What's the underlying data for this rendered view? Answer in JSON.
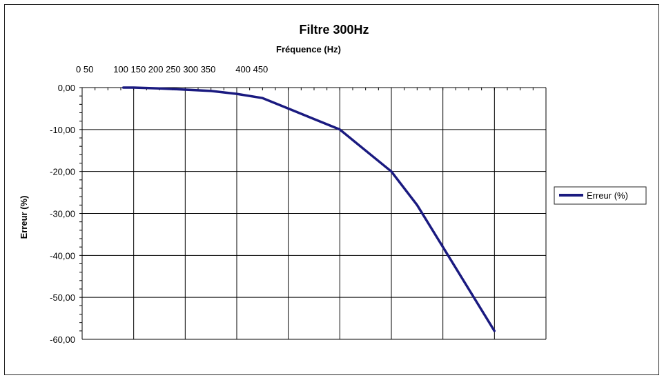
{
  "chart_data": {
    "type": "line",
    "title": "Filtre 300Hz",
    "xlabel": "Fréquence (Hz)",
    "ylabel": "Erreur (%)",
    "x_tick_labels_text": "0 50        100 150 200 250 300 350        400 450",
    "y_ticks": [
      "0,00",
      "-10,00",
      "-20,00",
      "-30,00",
      "-40,00",
      "-50,00",
      "-60,00"
    ],
    "ylim": [
      -60,
      0
    ],
    "x_categories": 9,
    "grid": true,
    "legend_position": "right",
    "series": [
      {
        "name": "Erreur (%)",
        "color": "#1a1a80",
        "x": [
          0.8,
          1.0,
          1.5,
          2.0,
          2.5,
          3.0,
          3.5,
          4.0,
          4.5,
          5.0,
          5.5,
          6.0,
          6.5,
          7.0,
          7.5,
          8.0
        ],
        "values": [
          0.0,
          0.0,
          -0.2,
          -0.5,
          -0.8,
          -1.5,
          -2.5,
          -5.0,
          -7.5,
          -10.0,
          -15.0,
          -20.0,
          -28.0,
          -38.0,
          -48.0,
          -58.0
        ]
      }
    ]
  }
}
